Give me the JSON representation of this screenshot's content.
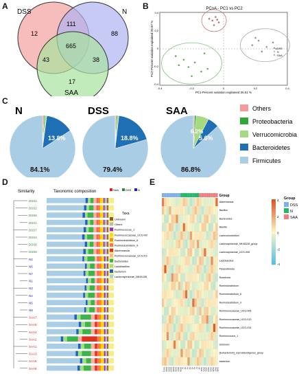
{
  "panels": {
    "A": {
      "label": "A"
    },
    "B": {
      "label": "B"
    },
    "C": {
      "label": "C"
    },
    "D": {
      "label": "D"
    },
    "E": {
      "label": "E"
    }
  },
  "venn": {
    "sets": [
      "DSS",
      "N",
      "SAA"
    ],
    "colors": {
      "DSS": "#f4a6a6",
      "N": "#aeb4f0",
      "SAA": "#a8e2a0"
    },
    "regions": {
      "dss_only": "12",
      "n_only": "88",
      "saa_only": "17",
      "dss_n": "111",
      "dss_saa": "43",
      "n_saa": "38",
      "all": "665"
    }
  },
  "pcoa": {
    "title": "PCoA - PC1 vs PC2",
    "xlabel": "PC1-Percent variation explained 26.61 %",
    "ylabel": "PC2-Percent variation explained 20.07 %",
    "xticks": [
      "-0.4",
      "-0.2",
      "0",
      "0.2",
      "0.4"
    ],
    "yticks": [
      "0.4",
      "0.2",
      "0",
      "-0.2",
      "-0.4"
    ],
    "legend": [
      {
        "name": "DSS",
        "color": "#999999"
      },
      {
        "name": "N",
        "color": "#bbbbbb"
      },
      {
        "name": "SAA",
        "color": "#8fc88f"
      }
    ]
  },
  "pies": {
    "legend": [
      {
        "name": "Others",
        "color": "#f29c9c"
      },
      {
        "name": "Proteobacteria",
        "color": "#2ea836"
      },
      {
        "name": "Verrucomicrobia",
        "color": "#a6d980"
      },
      {
        "name": "Bacteroidetes",
        "color": "#1f6fb5"
      },
      {
        "name": "Firmicutes",
        "color": "#a9cde4"
      }
    ]
  },
  "stack": {
    "similarity_label": "Similarity",
    "composition_label": "Taxonomic composition",
    "group_legend": [
      {
        "name": "SAA",
        "color": "#e02020"
      },
      {
        "name": "DSS",
        "color": "#2a8a2a"
      },
      {
        "name": "N",
        "color": "#2020c0"
      }
    ],
    "taxa_title": "Taxa",
    "taxa": [
      {
        "name": "Unknown",
        "color": "#8b5a2b"
      },
      {
        "name": "Others",
        "color": "#bbbbbb"
      },
      {
        "name": "Ruminococcaceae_1",
        "color": "#8a2be2"
      },
      {
        "name": "Ruminococcaceae_UCG-005",
        "color": "#ffd700"
      },
      {
        "name": "Ruminiclostridium_6",
        "color": "#ff8c00"
      },
      {
        "name": "Ruminiclostridium_9",
        "color": "#ff6f61"
      },
      {
        "name": "Akkermansia",
        "color": "#e0301e"
      },
      {
        "name": "Ruminococcaceae_UCG-014",
        "color": "#ffb0a0"
      },
      {
        "name": "Bacteroides",
        "color": "#3cb44b"
      },
      {
        "name": "Lactobacillus",
        "color": "#a0e080"
      },
      {
        "name": "Bacteroides_b",
        "color": "#2060c0"
      },
      {
        "name": "Lachnospiraceae_NK4A136_group",
        "color": "#a9cde4"
      }
    ],
    "taxa_labels": [
      "Unknown",
      "Others",
      "Ruminococcus_1",
      "Ruminococcaceae_UCG-005",
      "Ruminiclostridium_6",
      "Ruminiclostridium_9",
      "Akkermansia",
      "Ruminococcaceae_UCG-014",
      "Bacteroides",
      "Lactobacillus",
      "bacterium",
      "Lachnospiraceae_NK4A136_group"
    ],
    "samples": [
      {
        "name": "DSS4",
        "group": "DSS"
      },
      {
        "name": "DSS2",
        "group": "DSS"
      },
      {
        "name": "DSS6",
        "group": "DSS"
      },
      {
        "name": "DSS1",
        "group": "DSS"
      },
      {
        "name": "DSS7",
        "group": "DSS"
      },
      {
        "name": "DSS3",
        "group": "DSS"
      },
      {
        "name": "DSS8",
        "group": "DSS"
      },
      {
        "name": "DSS5",
        "group": "DSS"
      },
      {
        "name": "N2",
        "group": "N"
      },
      {
        "name": "N6",
        "group": "N"
      },
      {
        "name": "N7",
        "group": "N"
      },
      {
        "name": "N1",
        "group": "N"
      },
      {
        "name": "N3",
        "group": "N"
      },
      {
        "name": "N4",
        "group": "N"
      },
      {
        "name": "N5",
        "group": "N"
      },
      {
        "name": "N8",
        "group": "N"
      },
      {
        "name": "SAA7",
        "group": "SAA"
      },
      {
        "name": "SAA5",
        "group": "SAA"
      },
      {
        "name": "SAA4",
        "group": "SAA"
      },
      {
        "name": "SAA2",
        "group": "SAA"
      },
      {
        "name": "SAA1",
        "group": "SAA"
      },
      {
        "name": "SAA3",
        "group": "SAA"
      },
      {
        "name": "SAA8",
        "group": "SAA"
      },
      {
        "name": "SAA6",
        "group": "SAA"
      }
    ]
  },
  "heatmap": {
    "group_title": "Group",
    "groups": [
      {
        "name": "DSS",
        "color": "#7fb0e6"
      },
      {
        "name": "N",
        "color": "#26b86a"
      },
      {
        "name": "SAA",
        "color": "#f08080"
      }
    ],
    "scale_ticks": [
      "4",
      "2",
      "0",
      "-2",
      "-4"
    ],
    "rows": [
      "Akkermansia",
      "Bacillus",
      "Bacteroides",
      "Blautia",
      "Lachnoclostridium",
      "Lachnospiraceae_NK4A136_group",
      "Lachnospiraceae_UCG-006",
      "Lactobacillus",
      "Parasutterella",
      "Roseburia",
      "Ruminiclostridium",
      "Ruminiclostridium_6",
      "Ruminiclostridium_9",
      "Ruminococcaceae_UCG-005",
      "Ruminococcaceae_UCG-013",
      "Ruminococcaceae_UCG-014",
      "Ruminococcus_1",
      "Unknown",
      "[Eubacterium]_coprostanoligenes_group",
      "bacterium"
    ],
    "columns": [
      "DSS1",
      "DSS2",
      "DSS3",
      "DSS4",
      "DSS5",
      "DSS6",
      "DSS7",
      "DSS8",
      "N1",
      "N2",
      "N3",
      "N4",
      "N5",
      "N6",
      "N7",
      "N8",
      "SAA1",
      "SAA2",
      "SAA3",
      "SAA4",
      "SAA5",
      "SAA6",
      "SAA7",
      "SAA8"
    ]
  },
  "chart_data": [
    {
      "type": "pie",
      "title": "N",
      "categories": [
        "Firmicutes",
        "Bacteroidetes",
        "Verrucomicrobia",
        "Proteobacteria",
        "Others"
      ],
      "values": [
        84.1,
        13.8,
        0.7,
        0.6,
        0.8
      ],
      "labels": [
        "84.1%",
        "13.8%"
      ]
    },
    {
      "type": "pie",
      "title": "DSS",
      "categories": [
        "Firmicutes",
        "Bacteroidetes",
        "Verrucomicrobia",
        "Proteobacteria",
        "Others"
      ],
      "values": [
        79.4,
        18.8,
        0.6,
        0.6,
        0.6
      ],
      "labels": [
        "79.4%",
        "18.8%"
      ]
    },
    {
      "type": "pie",
      "title": "SAA",
      "categories": [
        "Firmicutes",
        "Bacteroidetes",
        "Verrucomicrobia",
        "Proteobacteria",
        "Others"
      ],
      "values": [
        86.8,
        5.6,
        6.2,
        0.8,
        0.6
      ],
      "labels": [
        "86.8%",
        "5.6%",
        "6.2%"
      ]
    },
    {
      "type": "scatter",
      "title": "PCoA - PC1 vs PC2",
      "xlim": [
        -0.4,
        0.4
      ],
      "ylim": [
        -0.4,
        0.4
      ],
      "series": [
        {
          "name": "DSS",
          "x": [
            -0.09,
            -0.07,
            -0.05,
            -0.03,
            -0.06,
            -0.04
          ],
          "y": [
            0.33,
            0.31,
            0.35,
            0.29,
            0.26,
            0.32
          ]
        },
        {
          "name": "N",
          "x": [
            0.18,
            0.22,
            0.27,
            0.31,
            0.24,
            0.33,
            0.2
          ],
          "y": [
            0.04,
            0.09,
            0.02,
            0.07,
            -0.03,
            0.0,
            0.12
          ]
        },
        {
          "name": "SAA",
          "x": [
            -0.3,
            -0.25,
            -0.22,
            -0.18,
            -0.14,
            -0.12,
            -0.28,
            -0.2,
            -0.1
          ],
          "y": [
            -0.08,
            -0.12,
            -0.2,
            -0.15,
            -0.25,
            -0.05,
            -0.18,
            -0.3,
            -0.22
          ]
        }
      ]
    },
    {
      "type": "heatmap",
      "title": "",
      "note": "row-scaled abundances, range -4 to 4"
    }
  ]
}
